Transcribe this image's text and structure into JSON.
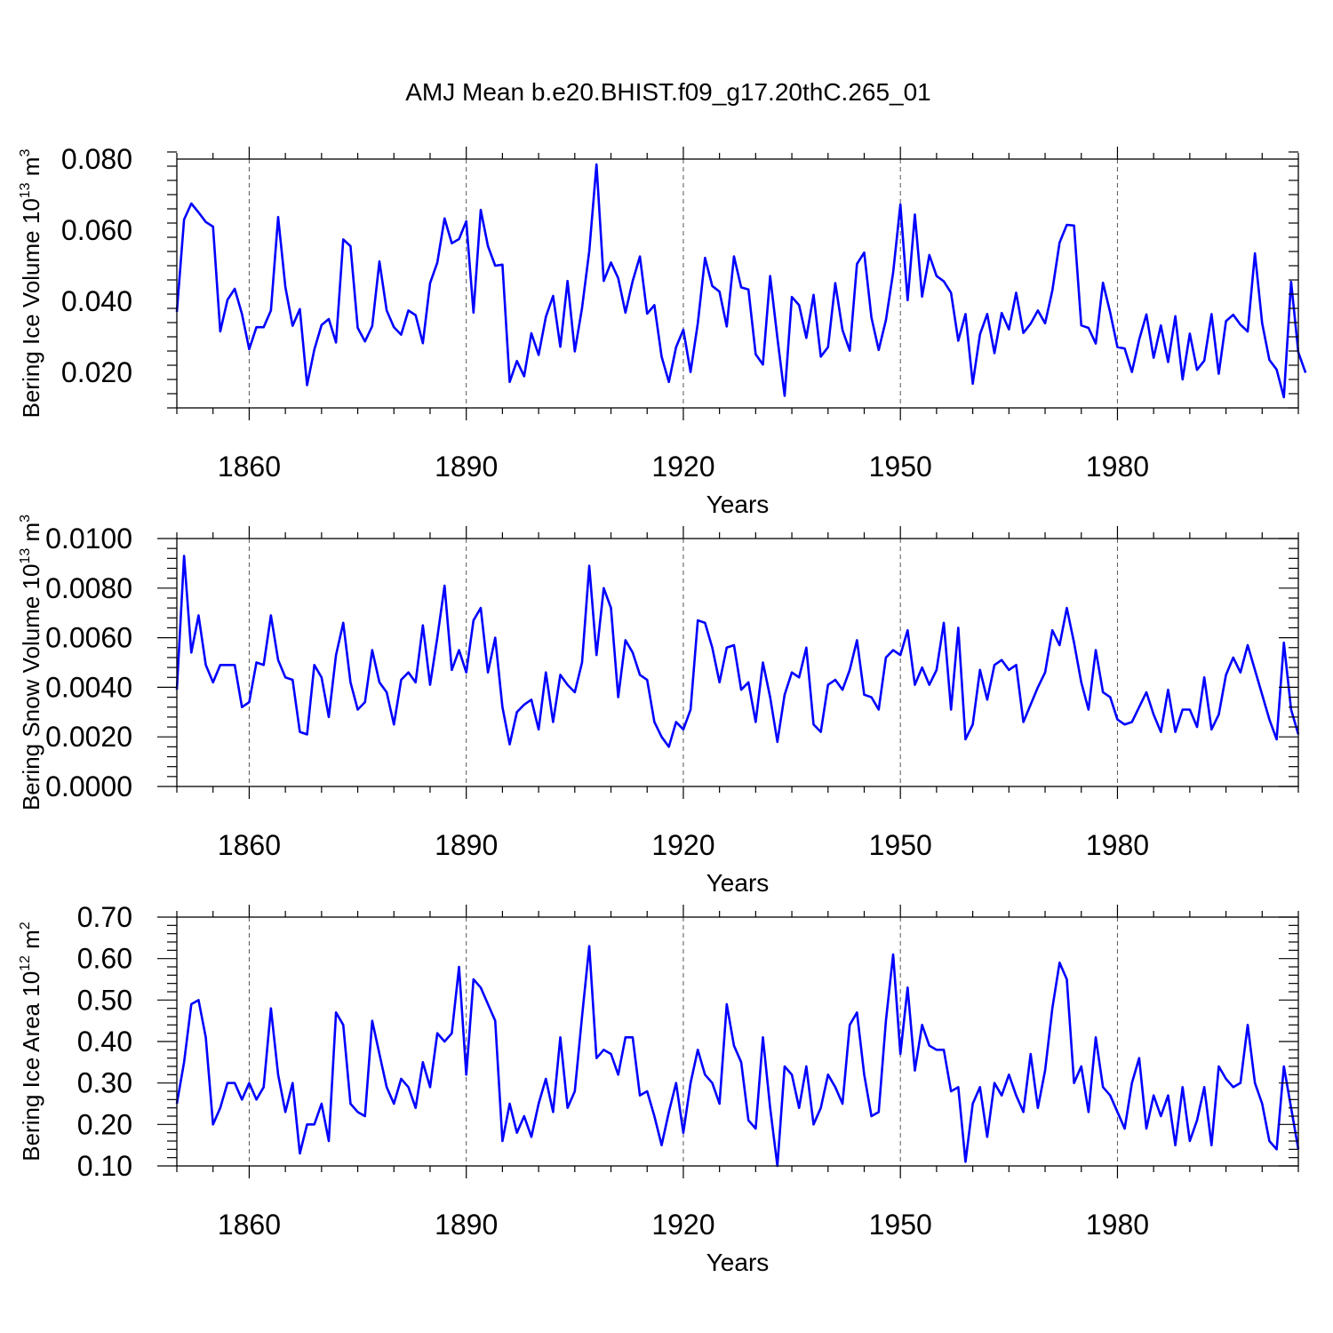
{
  "title": "AMJ Mean b.e20.BHIST.f09_g17.20thC.265_01",
  "colors": {
    "line": "#0000ff",
    "axis": "#000000",
    "grid": "#555555"
  },
  "chart_data": [
    {
      "type": "line",
      "id": "ice-volume",
      "ylabel": {
        "main": "Bering Ice Volume 10",
        "sup1": "13",
        "mid": " m",
        "sup2": "3"
      },
      "xlabel": "Years",
      "xlim": [
        1850,
        2005
      ],
      "ylim": [
        0.01,
        0.08
      ],
      "yticks": [
        0.02,
        0.04,
        0.06,
        0.08
      ],
      "ytick_labels": [
        "0.020",
        "0.040",
        "0.060",
        "0.080"
      ],
      "xticks": [
        1860,
        1890,
        1920,
        1950,
        1980
      ],
      "xtick_labels": [
        "1860",
        "1890",
        "1920",
        "1950",
        "1980"
      ],
      "x_start": 1850,
      "series": [
        {
          "name": "Bering Ice Volume",
          "values": [
            0.037,
            0.063,
            0.0675,
            0.065,
            0.0623,
            0.061,
            0.0315,
            0.0404,
            0.0435,
            0.0364,
            0.0265,
            0.0327,
            0.0327,
            0.0374,
            0.0637,
            0.044,
            0.0331,
            0.0378,
            0.0164,
            0.0264,
            0.0333,
            0.035,
            0.0284,
            0.0574,
            0.0555,
            0.0325,
            0.0287,
            0.033,
            0.0512,
            0.0374,
            0.0327,
            0.0306,
            0.0374,
            0.0361,
            0.0282,
            0.0451,
            0.0509,
            0.0633,
            0.0563,
            0.0575,
            0.0625,
            0.0368,
            0.0657,
            0.0555,
            0.05,
            0.0503,
            0.0173,
            0.0232,
            0.0189,
            0.031,
            0.0249,
            0.0356,
            0.0415,
            0.0272,
            0.0457,
            0.0259,
            0.0381,
            0.0541,
            0.0785,
            0.0457,
            0.0509,
            0.0465,
            0.0368,
            0.0457,
            0.0526,
            0.0365,
            0.0389,
            0.0244,
            0.0173,
            0.0271,
            0.032,
            0.0201,
            0.0338,
            0.0522,
            0.0443,
            0.0427,
            0.0329,
            0.0526,
            0.0439,
            0.0433,
            0.0251,
            0.0222,
            0.0471,
            0.0297,
            0.0134,
            0.0412,
            0.0389,
            0.0297,
            0.0418,
            0.0244,
            0.0271,
            0.0451,
            0.0319,
            0.0261,
            0.0505,
            0.0537,
            0.0354,
            0.0263,
            0.0347,
            0.0481,
            0.0672,
            0.0403,
            0.0644,
            0.0413,
            0.053,
            0.0471,
            0.0456,
            0.0424,
            0.0289,
            0.0364,
            0.0168,
            0.0307,
            0.0364,
            0.0254,
            0.0367,
            0.0321,
            0.0424,
            0.0311,
            0.0337,
            0.0374,
            0.0338,
            0.043,
            0.0565,
            0.0615,
            0.0613,
            0.0332,
            0.0325,
            0.0281,
            0.0452,
            0.0368,
            0.0271,
            0.0267,
            0.0201,
            0.0292,
            0.0363,
            0.0241,
            0.0332,
            0.0229,
            0.0358,
            0.018,
            0.0309,
            0.0207,
            0.0233,
            0.0364,
            0.0196,
            0.0344,
            0.0362,
            0.0334,
            0.0315,
            0.0535,
            0.0338,
            0.0235,
            0.0208,
            0.013,
            0.0455,
            0.0256,
            0.0199
          ]
        }
      ]
    },
    {
      "type": "line",
      "id": "snow-volume",
      "ylabel": {
        "main": "Bering Snow Volume 10",
        "sup1": "13",
        "mid": " m",
        "sup2": "3"
      },
      "xlabel": "Years",
      "xlim": [
        1850,
        2005
      ],
      "ylim": [
        0.0,
        0.01
      ],
      "yticks": [
        0.0,
        0.002,
        0.004,
        0.006,
        0.008,
        0.01
      ],
      "ytick_labels": [
        "0.0000",
        "0.0020",
        "0.0040",
        "0.0060",
        "0.0080",
        "0.0100"
      ],
      "xticks": [
        1860,
        1890,
        1920,
        1950,
        1980
      ],
      "xtick_labels": [
        "1860",
        "1890",
        "1920",
        "1950",
        "1980"
      ],
      "x_start": 1850,
      "series": [
        {
          "name": "Bering Snow Volume",
          "values": [
            0.0039,
            0.0093,
            0.0054,
            0.0069,
            0.0049,
            0.0042,
            0.0049,
            0.0049,
            0.0049,
            0.0032,
            0.0034,
            0.005,
            0.0049,
            0.0069,
            0.0051,
            0.0044,
            0.0043,
            0.0022,
            0.0021,
            0.0049,
            0.0044,
            0.0028,
            0.0053,
            0.0066,
            0.0042,
            0.0031,
            0.0034,
            0.0055,
            0.0042,
            0.0038,
            0.0025,
            0.0043,
            0.0046,
            0.0042,
            0.0065,
            0.0041,
            0.006,
            0.0081,
            0.0047,
            0.0055,
            0.0046,
            0.0067,
            0.0072,
            0.0046,
            0.006,
            0.0032,
            0.0017,
            0.003,
            0.0033,
            0.0035,
            0.0023,
            0.0046,
            0.0026,
            0.0045,
            0.0041,
            0.0038,
            0.005,
            0.0089,
            0.0053,
            0.008,
            0.0072,
            0.0036,
            0.0059,
            0.0054,
            0.0045,
            0.0043,
            0.0026,
            0.002,
            0.0016,
            0.0026,
            0.0023,
            0.0031,
            0.0067,
            0.0066,
            0.0056,
            0.0042,
            0.0056,
            0.0057,
            0.0039,
            0.0042,
            0.0026,
            0.005,
            0.0036,
            0.0018,
            0.0037,
            0.0046,
            0.0044,
            0.0056,
            0.0025,
            0.0022,
            0.0041,
            0.0043,
            0.0039,
            0.0047,
            0.0059,
            0.0037,
            0.0036,
            0.0031,
            0.0052,
            0.0055,
            0.0053,
            0.0063,
            0.0041,
            0.0048,
            0.0041,
            0.0047,
            0.0066,
            0.0031,
            0.0064,
            0.0019,
            0.0025,
            0.0047,
            0.0035,
            0.0049,
            0.0051,
            0.0047,
            0.0049,
            0.0026,
            0.0033,
            0.004,
            0.0046,
            0.0063,
            0.0057,
            0.0072,
            0.0058,
            0.0042,
            0.0031,
            0.0055,
            0.0038,
            0.0036,
            0.0027,
            0.0025,
            0.0026,
            0.0032,
            0.0038,
            0.0029,
            0.0022,
            0.0039,
            0.0022,
            0.0031,
            0.0031,
            0.0024,
            0.0044,
            0.0023,
            0.0029,
            0.0045,
            0.0052,
            0.0046,
            0.0057,
            0.0047,
            0.0037,
            0.0027,
            0.0019,
            0.0058,
            0.0031,
            0.0021
          ]
        }
      ]
    },
    {
      "type": "line",
      "id": "ice-area",
      "ylabel": {
        "main": "Bering Ice Area 10",
        "sup1": "12",
        "mid": " m",
        "sup2": "2"
      },
      "xlabel": "Years",
      "xlim": [
        1850,
        2005
      ],
      "ylim": [
        0.1,
        0.7
      ],
      "yticks": [
        0.1,
        0.2,
        0.3,
        0.4,
        0.5,
        0.6,
        0.7
      ],
      "ytick_labels": [
        "0.10",
        "0.20",
        "0.30",
        "0.40",
        "0.50",
        "0.60",
        "0.70"
      ],
      "xticks": [
        1860,
        1890,
        1920,
        1950,
        1980
      ],
      "xtick_labels": [
        "1860",
        "1890",
        "1920",
        "1950",
        "1980"
      ],
      "x_start": 1850,
      "series": [
        {
          "name": "Bering Ice Area",
          "values": [
            0.25,
            0.35,
            0.49,
            0.5,
            0.41,
            0.2,
            0.24,
            0.3,
            0.3,
            0.26,
            0.3,
            0.26,
            0.29,
            0.48,
            0.32,
            0.23,
            0.3,
            0.13,
            0.2,
            0.2,
            0.25,
            0.16,
            0.47,
            0.44,
            0.25,
            0.23,
            0.22,
            0.45,
            0.37,
            0.29,
            0.25,
            0.31,
            0.29,
            0.24,
            0.35,
            0.29,
            0.42,
            0.4,
            0.42,
            0.58,
            0.32,
            0.55,
            0.53,
            0.49,
            0.45,
            0.16,
            0.25,
            0.18,
            0.22,
            0.17,
            0.25,
            0.31,
            0.23,
            0.41,
            0.24,
            0.28,
            0.46,
            0.63,
            0.36,
            0.38,
            0.37,
            0.32,
            0.41,
            0.41,
            0.27,
            0.28,
            0.22,
            0.15,
            0.23,
            0.3,
            0.18,
            0.3,
            0.38,
            0.32,
            0.3,
            0.25,
            0.49,
            0.39,
            0.35,
            0.21,
            0.19,
            0.41,
            0.24,
            0.1,
            0.34,
            0.32,
            0.24,
            0.34,
            0.2,
            0.24,
            0.32,
            0.29,
            0.25,
            0.44,
            0.47,
            0.32,
            0.22,
            0.23,
            0.45,
            0.61,
            0.37,
            0.53,
            0.33,
            0.44,
            0.39,
            0.38,
            0.38,
            0.28,
            0.29,
            0.11,
            0.25,
            0.29,
            0.17,
            0.3,
            0.27,
            0.32,
            0.27,
            0.23,
            0.37,
            0.24,
            0.33,
            0.48,
            0.59,
            0.55,
            0.3,
            0.34,
            0.23,
            0.41,
            0.29,
            0.27,
            0.23,
            0.19,
            0.3,
            0.36,
            0.19,
            0.27,
            0.22,
            0.27,
            0.15,
            0.29,
            0.16,
            0.21,
            0.29,
            0.15,
            0.34,
            0.31,
            0.29,
            0.3,
            0.44,
            0.3,
            0.25,
            0.16,
            0.14,
            0.34,
            0.24,
            0.14
          ]
        }
      ]
    }
  ]
}
